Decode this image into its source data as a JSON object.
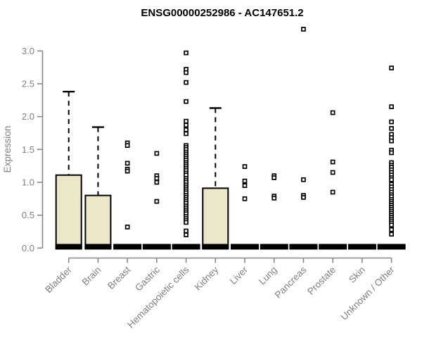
{
  "chart_data": {
    "type": "boxplot",
    "title": "ENSG00000252986 - AC147651.2",
    "xlabel": "",
    "ylabel": "Expression",
    "ylim": [
      0.0,
      3.0
    ],
    "grid": false,
    "y_ticks": [
      0.0,
      0.5,
      1.0,
      1.5,
      2.0,
      2.5,
      3.0
    ],
    "y_tick_labels": [
      "0.0",
      "0.5",
      "1.0",
      "1.5",
      "2.0",
      "2.5",
      "3.0"
    ],
    "categories": [
      "Bladder",
      "Brain",
      "Breast",
      "Gastric",
      "Hematopoietic cells",
      "Kidney",
      "Liver",
      "Lung",
      "Pancreas",
      "Prostate",
      "Skin",
      "Unknown / Other"
    ],
    "boxes": [
      {
        "category": "Bladder",
        "whisker_low": 0,
        "q1": 0,
        "median": 0.02,
        "q3": 1.11,
        "whisker_high": 2.38,
        "outliers": []
      },
      {
        "category": "Brain",
        "whisker_low": 0,
        "q1": 0,
        "median": 0.02,
        "q3": 0.8,
        "whisker_high": 1.84,
        "outliers": []
      },
      {
        "category": "Breast",
        "whisker_low": 0,
        "q1": 0,
        "median": 0.02,
        "q3": 0.02,
        "whisker_high": 0.02,
        "outliers": [
          1.6,
          1.56,
          1.29,
          1.2,
          1.17,
          0.32
        ]
      },
      {
        "category": "Gastric",
        "whisker_low": 0,
        "q1": 0,
        "median": 0.02,
        "q3": 0.02,
        "whisker_high": 0.02,
        "outliers": [
          1.44,
          1.1,
          1.06,
          1.0,
          0.71
        ]
      },
      {
        "category": "Hematopoietic cells",
        "whisker_low": 0,
        "q1": 0,
        "median": 0.02,
        "q3": 0.02,
        "whisker_high": 0.02,
        "outliers": [
          2.97,
          2.72,
          2.67,
          2.52,
          2.23,
          1.93,
          1.87,
          1.8,
          1.74,
          1.56,
          1.53,
          1.5,
          1.46,
          1.43,
          1.4,
          1.37,
          1.34,
          1.3,
          1.27,
          1.24,
          1.21,
          1.18,
          1.14,
          1.11,
          1.06,
          1.03,
          1.0,
          0.96,
          0.93,
          0.9,
          0.87,
          0.84,
          0.8,
          0.77,
          0.74,
          0.71,
          0.68,
          0.64,
          0.61,
          0.58,
          0.55,
          0.52,
          0.48,
          0.45,
          0.42,
          0.39,
          0.26,
          0.2
        ]
      },
      {
        "category": "Kidney",
        "whisker_low": 0,
        "q1": 0,
        "median": 0.02,
        "q3": 0.91,
        "whisker_high": 2.13,
        "outliers": []
      },
      {
        "category": "Liver",
        "whisker_low": 0,
        "q1": 0,
        "median": 0.02,
        "q3": 0.02,
        "whisker_high": 0.02,
        "outliers": [
          1.24,
          1.02,
          0.95,
          0.75
        ]
      },
      {
        "category": "Lung",
        "whisker_low": 0,
        "q1": 0,
        "median": 0.02,
        "q3": 0.02,
        "whisker_high": 0.02,
        "outliers": [
          1.1,
          1.07,
          0.79,
          0.76
        ]
      },
      {
        "category": "Pancreas",
        "whisker_low": 0,
        "q1": 0,
        "median": 0.02,
        "q3": 0.02,
        "whisker_high": 0.02,
        "outliers": [
          3.33,
          1.04,
          0.8,
          0.77
        ]
      },
      {
        "category": "Prostate",
        "whisker_low": 0,
        "q1": 0,
        "median": 0.02,
        "q3": 0.02,
        "whisker_high": 0.02,
        "outliers": [
          2.06,
          1.31,
          1.15,
          0.85
        ]
      },
      {
        "category": "Skin",
        "whisker_low": 0,
        "q1": 0,
        "median": 0.02,
        "q3": 0.02,
        "whisker_high": 0.02,
        "outliers": []
      },
      {
        "category": "Unknown / Other",
        "whisker_low": 0,
        "q1": 0,
        "median": 0.02,
        "q3": 0.02,
        "whisker_high": 0.02,
        "outliers": [
          2.74,
          2.15,
          1.92,
          1.82,
          1.73,
          1.68,
          1.63,
          1.49,
          1.45,
          1.3,
          1.26,
          1.23,
          1.19,
          1.15,
          1.11,
          1.07,
          1.04,
          0.97,
          0.93,
          0.89,
          0.85,
          0.81,
          0.78,
          0.74,
          0.71,
          0.68,
          0.65,
          0.62,
          0.59,
          0.56,
          0.53,
          0.5,
          0.47,
          0.44,
          0.41,
          0.38,
          0.35,
          0.28,
          0.21
        ]
      }
    ],
    "legend": null
  },
  "colors": {
    "box_fill": "#ECE7C9",
    "box_stroke": "#000000",
    "median_color": "#000000",
    "outlier_stroke": "#000000",
    "axis_line": "#888888",
    "tick_label": "#808080",
    "title_text": "#000000"
  }
}
